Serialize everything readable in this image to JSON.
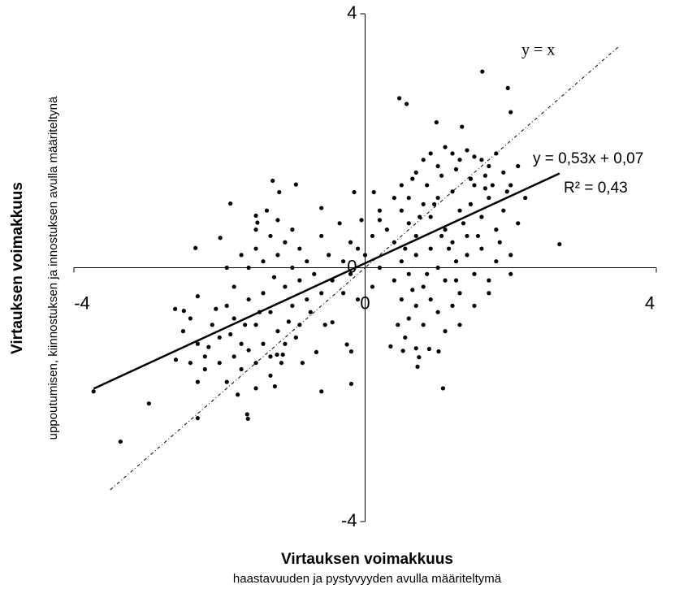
{
  "chart_data": {
    "type": "scatter",
    "xlabel": "Virtauksen voimakkuus",
    "xsublabel": "haastavuuden ja pystyvyyden avulla määriteltymä",
    "ylabel": "Virtauksen voimakkuus",
    "ysublabel": "uppoutumisen, kiinnostuksen ja innostuksen avulla määriteltynä",
    "xlim": [
      -4,
      4
    ],
    "xticks": [
      -4,
      0,
      4
    ],
    "ylim": [
      -4,
      4
    ],
    "yticks": [
      -4,
      0,
      4
    ],
    "trendline": {
      "slope": 0.53,
      "intercept": 0.07,
      "label": "y = 0,53x + 0,07",
      "r2_label": "R² = 0,43",
      "color": "#000000"
    },
    "reference_line": {
      "label": "y = x",
      "range": [
        -3.5,
        3.5
      ],
      "color": "#000000"
    },
    "series": [
      {
        "color": "#000000",
        "x": [
          -3.73,
          -3.36,
          -2.97,
          -2.61,
          -2.49,
          -2.33,
          -1.99,
          -1.85,
          -1.5,
          -1.48,
          -1.27,
          -1.18,
          -0.95,
          -0.6,
          -0.15,
          0.12,
          0.47,
          0.57,
          1.61,
          1.96,
          2.0,
          0.98,
          1.33,
          2.67,
          1.07,
          -0.19,
          -0.6,
          -1.62,
          -1.61,
          -2.3,
          -1.24,
          0.74,
          0.88,
          1.01,
          0.35,
          0.52,
          0.7,
          0.72,
          -0.45,
          -0.25,
          -0.19,
          -0.67,
          -0.86,
          -1.13,
          -1.21,
          0.5,
          0.6,
          0.7,
          0.8,
          0.9,
          1.0,
          1.1,
          1.2,
          1.3,
          1.4,
          1.5,
          1.6,
          1.7,
          1.8,
          1.9,
          2.0,
          2.1,
          2.2,
          0.5,
          0.6,
          0.7,
          0.8,
          0.9,
          1.0,
          1.1,
          1.2,
          1.3,
          1.4,
          1.5,
          1.6,
          1.7,
          1.8,
          1.9,
          2.0,
          2.1,
          0.4,
          0.5,
          0.6,
          0.7,
          0.8,
          0.9,
          1.0,
          1.1,
          1.2,
          1.3,
          1.4,
          1.5,
          1.6,
          1.7,
          1.8,
          2.0,
          0.5,
          0.6,
          0.7,
          0.8,
          0.9,
          1.0,
          1.1,
          1.2,
          1.3,
          1.5,
          1.7,
          0.4,
          0.3,
          0.2,
          0.4,
          0.65,
          0.85,
          1.05,
          1.25,
          1.45,
          1.65,
          1.75,
          1.95,
          0.55,
          0.75,
          0.95,
          1.15,
          1.35,
          1.55,
          1.85,
          0.45,
          0.55,
          0.85,
          1.05,
          1.25,
          1.45,
          1.65,
          1.25,
          0.65,
          0.1,
          0.0,
          -0.1,
          -0.2,
          -0.3,
          -0.2,
          0.1,
          -0.1,
          -0.3,
          0.2,
          -0.05,
          0.2,
          -0.35,
          -2.5,
          -2.4,
          -2.3,
          -2.2,
          -2.1,
          -2.0,
          -1.9,
          -1.8,
          -1.7,
          -1.6,
          -1.5,
          -1.4,
          -1.3,
          -1.2,
          -1.1,
          -1.0,
          -0.9,
          -0.8,
          -0.7,
          -0.6,
          -2.4,
          -2.2,
          -2.0,
          -1.8,
          -1.6,
          -1.5,
          -1.4,
          -1.3,
          -1.1,
          -0.9,
          -2.6,
          -2.3,
          -1.9,
          -1.7,
          -1.5,
          -1.3,
          -1.9,
          -1.8,
          -1.7,
          -1.6,
          -1.5,
          -1.4,
          -1.3,
          -1.2,
          -1.1,
          -1.0,
          -0.9,
          -0.8,
          -1.5,
          -1.35,
          -1.25,
          -1.45,
          -1.65,
          -1.85,
          -2.05,
          -2.15,
          -2.3,
          -1.05,
          -0.75,
          -0.55,
          -0.5,
          -0.6,
          -0.45,
          -1.15,
          -0.95,
          -1.75,
          -1.2,
          -1.0
        ],
        "values": [
          -1.95,
          -2.74,
          -2.14,
          -0.65,
          -0.68,
          0.31,
          0.47,
          1.01,
          0.82,
          0.71,
          1.37,
          1.19,
          1.31,
          0.94,
          1.19,
          1.19,
          2.67,
          2.58,
          3.09,
          2.83,
          2.45,
          2.29,
          2.22,
          0.37,
          -1.9,
          -1.83,
          -1.95,
          -2.31,
          -2.38,
          -2.37,
          -1.87,
          -1.41,
          -1.28,
          -1.32,
          -1.24,
          -1.31,
          -1.27,
          -1.56,
          -0.86,
          -1.21,
          -1.32,
          -1.33,
          -1.5,
          -1.37,
          -1.37,
          1.3,
          1.1,
          1.5,
          1.7,
          1.8,
          1.6,
          1.9,
          1.8,
          1.7,
          1.85,
          1.75,
          1.7,
          1.6,
          1.8,
          1.5,
          1.3,
          1.6,
          1.1,
          0.9,
          0.7,
          0.5,
          1.0,
          0.8,
          1.1,
          0.6,
          1.2,
          0.9,
          0.5,
          1.3,
          0.8,
          1.1,
          0.6,
          0.9,
          0.2,
          0.7,
          0.4,
          0.1,
          -0.1,
          0.2,
          -0.3,
          0.3,
          0.0,
          -0.2,
          0.4,
          -0.4,
          0.2,
          -0.1,
          0.3,
          -0.2,
          0.1,
          -0.1,
          -0.5,
          -0.8,
          -0.6,
          -0.9,
          -0.5,
          -0.7,
          -1.0,
          -0.6,
          -0.9,
          -0.6,
          -0.4,
          -0.2,
          0.6,
          0.9,
          1.1,
          1.4,
          1.3,
          1.45,
          1.55,
          1.4,
          1.45,
          1.3,
          1.2,
          0.3,
          0.8,
          1.0,
          0.3,
          0.7,
          0.5,
          0.4,
          -0.9,
          -1.1,
          -0.1,
          0.5,
          0.1,
          1.0,
          1.25,
          -0.2,
          -0.35,
          0.5,
          0.2,
          0.3,
          -0.1,
          0.1,
          0.4,
          -0.3,
          -0.5,
          -0.4,
          0.0,
          0.75,
          0.75,
          0.7,
          -1.0,
          -0.8,
          -1.2,
          -1.4,
          -0.9,
          -1.1,
          -0.6,
          -0.8,
          -1.2,
          -0.5,
          -0.9,
          -0.4,
          -0.7,
          -1.0,
          -0.3,
          -0.6,
          -0.2,
          -0.5,
          -0.1,
          -0.4,
          -1.5,
          -1.6,
          -1.5,
          -1.4,
          -1.3,
          -1.5,
          -1.2,
          -1.4,
          -1.2,
          -0.9,
          -1.45,
          -1.8,
          -1.8,
          -1.6,
          -1.9,
          -1.7,
          0.0,
          -0.3,
          0.2,
          0.0,
          0.3,
          0.1,
          0.5,
          0.2,
          0.4,
          0.0,
          0.3,
          0.1,
          0.6,
          0.9,
          -0.15,
          -0.7,
          -0.9,
          -1.05,
          -0.65,
          -1.25,
          -0.45,
          -0.85,
          -0.7,
          -0.9,
          0.2,
          0.5,
          -0.2,
          -1.5,
          -1.1,
          -2.0,
          0.75,
          0.6
        ]
      }
    ]
  }
}
